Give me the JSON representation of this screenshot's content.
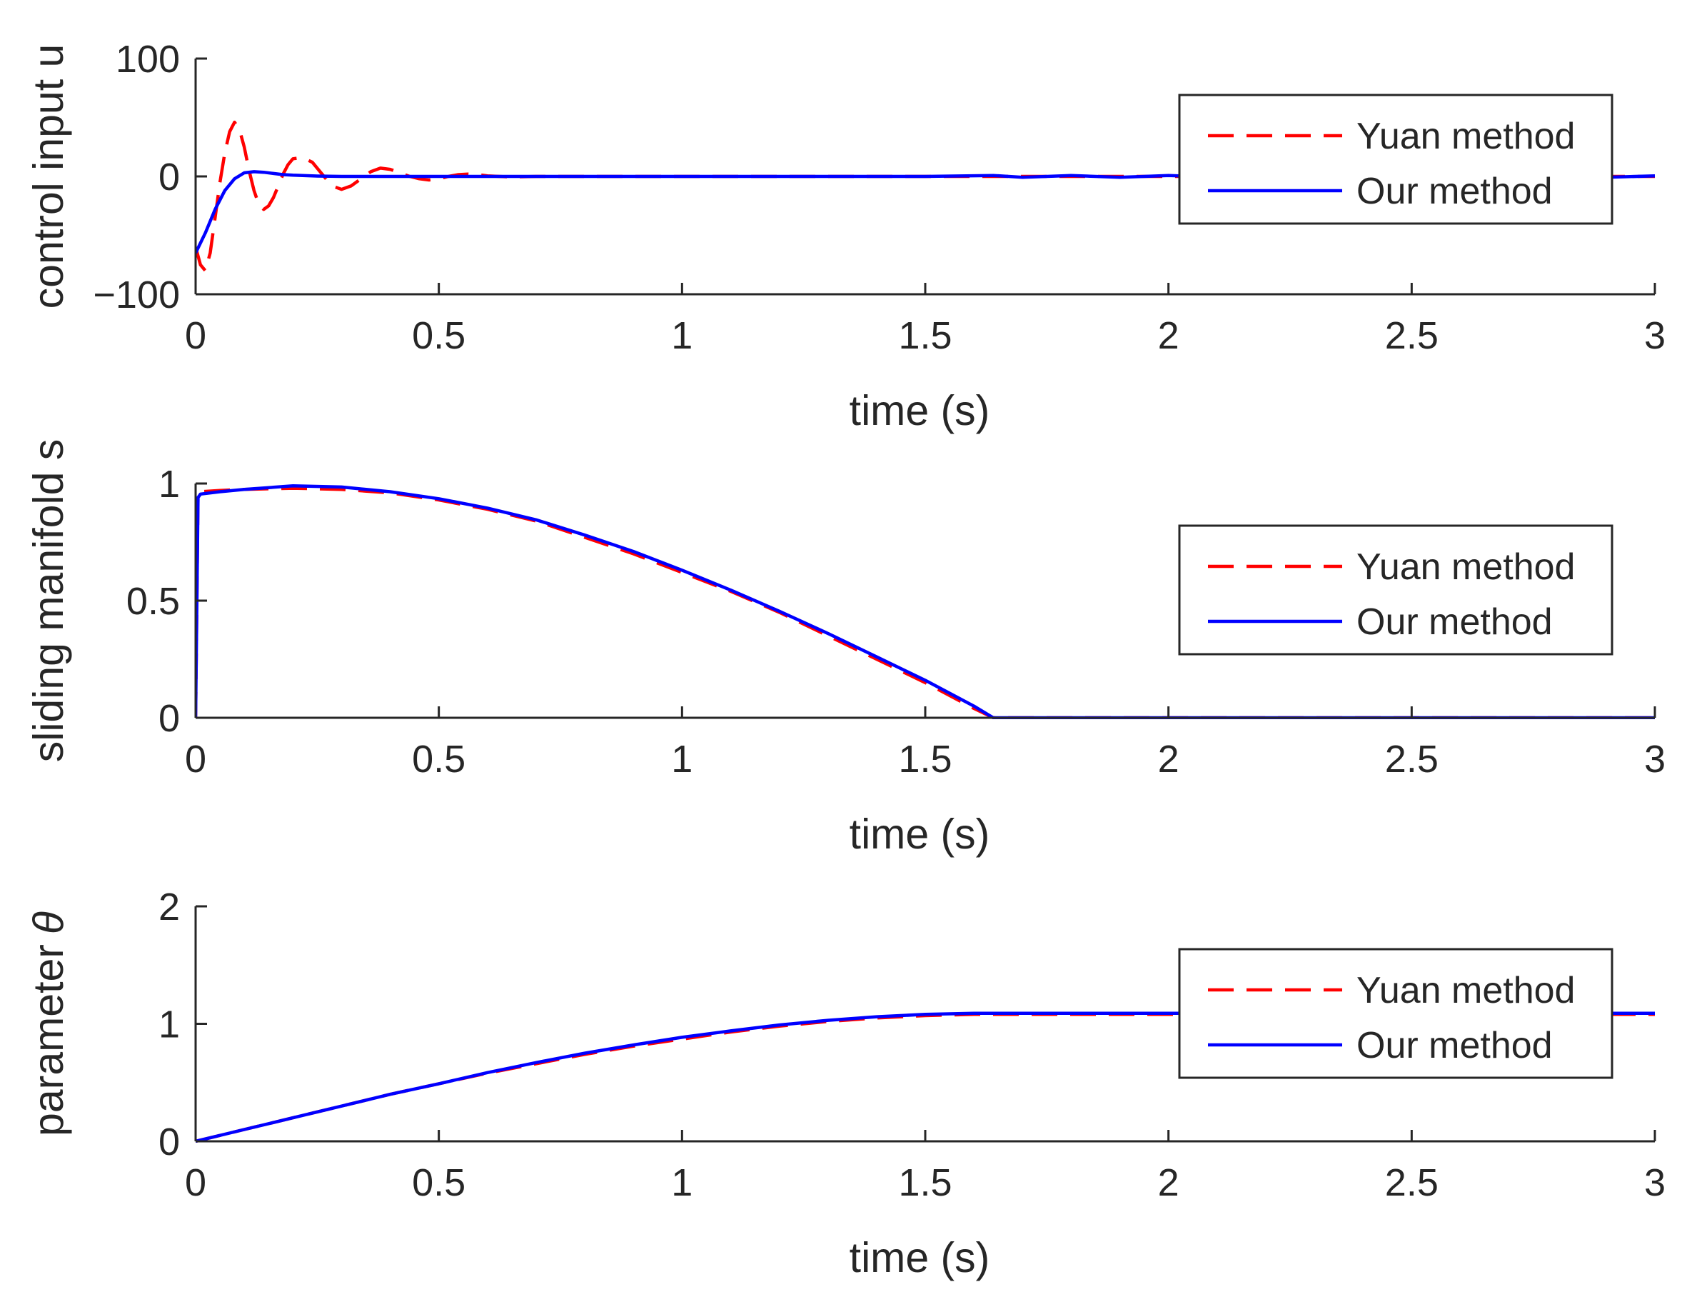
{
  "chart_data": [
    {
      "type": "line",
      "ylabel": "control input u",
      "xlabel": "time (s)",
      "xlim": [
        0,
        3
      ],
      "ylim": [
        -100,
        100
      ],
      "xticks": [
        0,
        0.5,
        1,
        1.5,
        2,
        2.5,
        3
      ],
      "xtick_labels": [
        "0",
        "0.5",
        "1",
        "1.5",
        "2",
        "2.5",
        "3"
      ],
      "yticks": [
        -100,
        0,
        100
      ],
      "ytick_labels": [
        "−100",
        "0",
        "100"
      ],
      "legend_location": "upper-right",
      "series": [
        {
          "name": "Yuan method",
          "color": "#ff0000",
          "style": "dashed",
          "x": [
            0,
            0.01,
            0.02,
            0.03,
            0.04,
            0.05,
            0.06,
            0.07,
            0.08,
            0.09,
            0.1,
            0.11,
            0.12,
            0.13,
            0.14,
            0.15,
            0.16,
            0.17,
            0.18,
            0.19,
            0.2,
            0.22,
            0.24,
            0.26,
            0.28,
            0.3,
            0.32,
            0.34,
            0.36,
            0.38,
            0.4,
            0.42,
            0.44,
            0.46,
            0.48,
            0.5,
            0.52,
            0.54,
            0.56,
            0.58,
            0.6,
            0.65,
            0.7,
            0.8,
            1.0,
            1.5,
            2.0,
            2.5,
            3.0
          ],
          "y": [
            -60,
            -75,
            -80,
            -65,
            -35,
            -5,
            20,
            38,
            46,
            40,
            25,
            5,
            -12,
            -24,
            -28,
            -25,
            -18,
            -8,
            2,
            10,
            15,
            16,
            12,
            2,
            -8,
            -11,
            -8,
            -2,
            4,
            7,
            6,
            3,
            0,
            -2,
            -3,
            -2,
            0,
            1.5,
            2,
            1.5,
            0.5,
            -0.5,
            0,
            0,
            0,
            0,
            0,
            0,
            0
          ]
        },
        {
          "name": "Our method",
          "color": "#0000ff",
          "style": "solid",
          "x": [
            0,
            0.02,
            0.04,
            0.06,
            0.08,
            0.1,
            0.12,
            0.14,
            0.16,
            0.18,
            0.2,
            0.25,
            0.3,
            0.4,
            0.6,
            1.0,
            1.5,
            1.64,
            1.7,
            1.8,
            1.9,
            2.0,
            2.1,
            2.2,
            2.3,
            2.4,
            2.5,
            2.6,
            2.7,
            2.8,
            2.9,
            3.0
          ],
          "y": [
            -65,
            -48,
            -28,
            -12,
            -2,
            3,
            4,
            3.5,
            2.5,
            1.5,
            1,
            0.3,
            0,
            0,
            0,
            0,
            0,
            0.8,
            -0.8,
            0.8,
            -0.8,
            0.8,
            -0.8,
            0.8,
            -0.8,
            0.8,
            -0.8,
            0.8,
            -0.8,
            0.8,
            -0.8,
            0.5
          ]
        }
      ]
    },
    {
      "type": "line",
      "ylabel": "sliding manifold s",
      "xlabel": "time (s)",
      "xlim": [
        0,
        3
      ],
      "ylim": [
        0,
        1
      ],
      "xticks": [
        0,
        0.5,
        1,
        1.5,
        2,
        2.5,
        3
      ],
      "xtick_labels": [
        "0",
        "0.5",
        "1",
        "1.5",
        "2",
        "2.5",
        "3"
      ],
      "yticks": [
        0,
        0.5,
        1
      ],
      "ytick_labels": [
        "0",
        "0.5",
        "1"
      ],
      "legend_location": "center-right",
      "series": [
        {
          "name": "Yuan method",
          "color": "#ff0000",
          "style": "dashed",
          "x": [
            0,
            0.005,
            0.01,
            0.05,
            0.1,
            0.2,
            0.3,
            0.4,
            0.5,
            0.6,
            0.7,
            0.8,
            0.9,
            1.0,
            1.1,
            1.2,
            1.3,
            1.4,
            1.5,
            1.6,
            1.64,
            2.0,
            2.5,
            3.0
          ],
          "y": [
            0,
            0.96,
            0.965,
            0.97,
            0.975,
            0.98,
            0.975,
            0.96,
            0.93,
            0.89,
            0.84,
            0.77,
            0.7,
            0.62,
            0.54,
            0.45,
            0.35,
            0.25,
            0.15,
            0.04,
            0,
            0,
            0,
            0
          ]
        },
        {
          "name": "Our method",
          "color": "#0000ff",
          "style": "solid",
          "x": [
            0,
            0.005,
            0.01,
            0.05,
            0.1,
            0.2,
            0.3,
            0.4,
            0.5,
            0.6,
            0.7,
            0.8,
            0.9,
            1.0,
            1.1,
            1.2,
            1.3,
            1.4,
            1.5,
            1.6,
            1.64,
            2.0,
            2.5,
            3.0
          ],
          "y": [
            0,
            0.94,
            0.955,
            0.965,
            0.975,
            0.99,
            0.985,
            0.965,
            0.935,
            0.895,
            0.845,
            0.78,
            0.71,
            0.63,
            0.545,
            0.455,
            0.36,
            0.26,
            0.16,
            0.05,
            0,
            0,
            0,
            0
          ]
        }
      ]
    },
    {
      "type": "line",
      "ylabel": "parameter",
      "ylabel_symbol": "θ",
      "xlabel": "time (s)",
      "xlim": [
        0,
        3
      ],
      "ylim": [
        0,
        2
      ],
      "xticks": [
        0,
        0.5,
        1,
        1.5,
        2,
        2.5,
        3
      ],
      "xtick_labels": [
        "0",
        "0.5",
        "1",
        "1.5",
        "2",
        "2.5",
        "3"
      ],
      "yticks": [
        0,
        1,
        2
      ],
      "ytick_labels": [
        "0",
        "1",
        "2"
      ],
      "legend_location": "right",
      "series": [
        {
          "name": "Yuan method",
          "color": "#ff0000",
          "style": "dashed",
          "x": [
            0,
            0.1,
            0.2,
            0.3,
            0.4,
            0.5,
            0.6,
            0.7,
            0.8,
            0.9,
            1.0,
            1.1,
            1.2,
            1.3,
            1.4,
            1.5,
            1.6,
            1.7,
            2.0,
            2.5,
            3.0
          ],
          "y": [
            0,
            0.1,
            0.2,
            0.3,
            0.4,
            0.49,
            0.58,
            0.66,
            0.74,
            0.81,
            0.87,
            0.93,
            0.98,
            1.02,
            1.05,
            1.07,
            1.08,
            1.08,
            1.08,
            1.08,
            1.08
          ]
        },
        {
          "name": "Our method",
          "color": "#0000ff",
          "style": "solid",
          "x": [
            0,
            0.1,
            0.2,
            0.3,
            0.4,
            0.5,
            0.6,
            0.7,
            0.8,
            0.9,
            1.0,
            1.1,
            1.2,
            1.3,
            1.4,
            1.5,
            1.6,
            1.7,
            2.0,
            2.5,
            3.0
          ],
          "y": [
            0,
            0.1,
            0.2,
            0.3,
            0.4,
            0.49,
            0.585,
            0.67,
            0.75,
            0.82,
            0.885,
            0.94,
            0.99,
            1.03,
            1.06,
            1.08,
            1.09,
            1.09,
            1.09,
            1.09,
            1.09
          ]
        }
      ]
    }
  ]
}
